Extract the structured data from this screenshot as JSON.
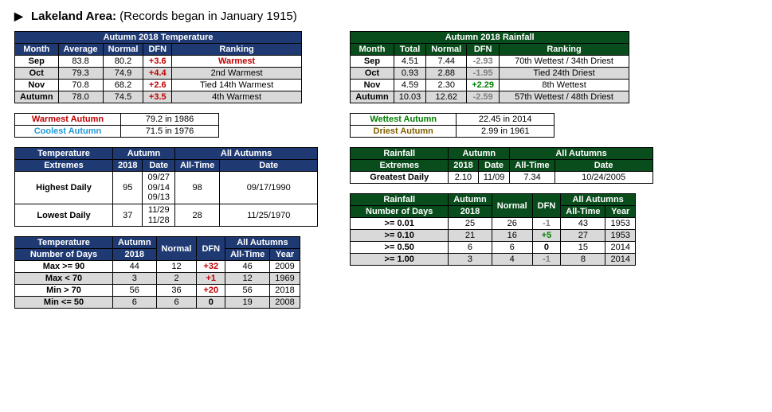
{
  "title": {
    "arrow": "▶",
    "location": "Lakeland Area:",
    "note": "(Records began in January 1915)"
  },
  "temp": {
    "header": "Autumn 2018 Temperature",
    "cols": [
      "Month",
      "Average",
      "Normal",
      "DFN",
      "Ranking"
    ],
    "rows": [
      {
        "m": "Sep",
        "avg": "83.8",
        "norm": "80.2",
        "dfn": "+3.6",
        "dfn_class": "pos",
        "rank": "Warmest",
        "rank_class": "warm-red",
        "gray": false
      },
      {
        "m": "Oct",
        "avg": "79.3",
        "norm": "74.9",
        "dfn": "+4.4",
        "dfn_class": "pos",
        "rank": "2nd Warmest",
        "rank_class": "",
        "gray": true
      },
      {
        "m": "Nov",
        "avg": "70.8",
        "norm": "68.2",
        "dfn": "+2.6",
        "dfn_class": "pos",
        "rank": "Tied 14th Warmest",
        "rank_class": "",
        "gray": false
      },
      {
        "m": "Autumn",
        "avg": "78.0",
        "norm": "74.5",
        "dfn": "+3.5",
        "dfn_class": "pos",
        "rank": "4th Warmest",
        "rank_class": "",
        "gray": true
      }
    ],
    "records": {
      "warm_label": "Warmest Autumn",
      "warm_val": "79.2 in 1986",
      "cool_label": "Coolest Autumn",
      "cool_val": "71.5 in 1976"
    },
    "extremes": {
      "header1": "Temperature",
      "header2": "Extremes",
      "autumn_hdr": "Autumn",
      "all_hdr": "All Autumns",
      "sub": [
        "2018",
        "Date",
        "All-Time",
        "Date"
      ],
      "rows": [
        {
          "lbl": "Highest Daily",
          "v": "95",
          "d": "09/27\n09/14\n09/13",
          "at": "98",
          "ad": "09/17/1990"
        },
        {
          "lbl": "Lowest Daily",
          "v": "37",
          "d": "11/29\n11/28",
          "at": "28",
          "ad": "11/25/1970"
        }
      ]
    },
    "days": {
      "header1": "Temperature",
      "header2": "Number of Days",
      "autumn_hdr": "Autumn",
      "sub_autumn": "2018",
      "norm_hdr": "Normal",
      "dfn_hdr": "DFN",
      "all_hdr": "All Autumns",
      "sub_all1": "All-Time",
      "sub_all2": "Year",
      "rows": [
        {
          "lbl": "Max >= 90",
          "v": "44",
          "n": "12",
          "dfn": "+32",
          "dfn_class": "pos",
          "at": "46",
          "y": "2009",
          "gray": false
        },
        {
          "lbl": "Max < 70",
          "v": "3",
          "n": "2",
          "dfn": "+1",
          "dfn_class": "pos",
          "at": "12",
          "y": "1969",
          "gray": true
        },
        {
          "lbl": "Min > 70",
          "v": "56",
          "n": "36",
          "dfn": "+20",
          "dfn_class": "pos",
          "at": "56",
          "y": "2018",
          "gray": false
        },
        {
          "lbl": "Min <= 50",
          "v": "6",
          "n": "6",
          "dfn": "0",
          "dfn_class": "bold",
          "at": "19",
          "y": "2008",
          "gray": true
        }
      ]
    }
  },
  "rain": {
    "header": "Autumn 2018 Rainfall",
    "cols": [
      "Month",
      "Total",
      "Normal",
      "DFN",
      "Ranking"
    ],
    "rows": [
      {
        "m": "Sep",
        "tot": "4.51",
        "norm": "7.44",
        "dfn": "-2.93",
        "dfn_class": "neg",
        "rank": "70th Wettest / 34th Driest",
        "gray": false
      },
      {
        "m": "Oct",
        "tot": "0.93",
        "norm": "2.88",
        "dfn": "-1.95",
        "dfn_class": "neg",
        "rank": "Tied 24th Driest",
        "gray": true
      },
      {
        "m": "Nov",
        "tot": "4.59",
        "norm": "2.30",
        "dfn": "+2.29",
        "dfn_class": "posg",
        "rank": "8th Wettest",
        "gray": false
      },
      {
        "m": "Autumn",
        "tot": "10.03",
        "norm": "12.62",
        "dfn": "-2.59",
        "dfn_class": "neg",
        "rank": "57th Wettest / 48th Driest",
        "gray": true
      }
    ],
    "records": {
      "wet_label": "Wettest Autumn",
      "wet_val": "22.45 in 2014",
      "dry_label": "Driest Autumn",
      "dry_val": "2.99 in 1961"
    },
    "extremes": {
      "header1": "Rainfall",
      "header2": "Extremes",
      "autumn_hdr": "Autumn",
      "all_hdr": "All Autumns",
      "sub": [
        "2018",
        "Date",
        "All-Time",
        "Date"
      ],
      "rows": [
        {
          "lbl": "Greatest Daily",
          "v": "2.10",
          "d": "11/09",
          "at": "7.34",
          "ad": "10/24/2005"
        }
      ]
    },
    "days": {
      "header1": "Rainfall",
      "header2": "Number of Days",
      "autumn_hdr": "Autumn",
      "sub_autumn": "2018",
      "norm_hdr": "Normal",
      "dfn_hdr": "DFN",
      "all_hdr": "All Autumns",
      "sub_all1": "All-Time",
      "sub_all2": "Year",
      "rows": [
        {
          "lbl": ">= 0.01",
          "v": "25",
          "n": "26",
          "dfn": "-1",
          "dfn_class": "neg",
          "at": "43",
          "y": "1953",
          "gray": false
        },
        {
          "lbl": ">= 0.10",
          "v": "21",
          "n": "16",
          "dfn": "+5",
          "dfn_class": "posg",
          "at": "27",
          "y": "1953",
          "gray": true
        },
        {
          "lbl": ">= 0.50",
          "v": "6",
          "n": "6",
          "dfn": "0",
          "dfn_class": "bold",
          "at": "15",
          "y": "2014",
          "gray": false
        },
        {
          "lbl": ">= 1.00",
          "v": "3",
          "n": "4",
          "dfn": "-1",
          "dfn_class": "neg",
          "at": "8",
          "y": "2014",
          "gray": true
        }
      ]
    }
  }
}
